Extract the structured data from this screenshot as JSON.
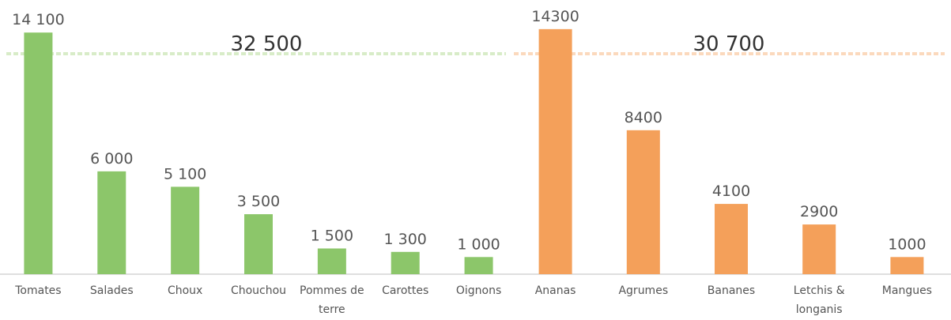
{
  "chart_data": [
    {
      "type": "bar",
      "annotation": "32 500",
      "categories": [
        "Tomates",
        "Salades",
        "Choux",
        "Chouchou",
        "Pommes de terre",
        "Carottes",
        "Oignons"
      ],
      "values": [
        14100,
        6000,
        5100,
        3500,
        1500,
        1300,
        1000
      ],
      "value_labels": [
        "14 100",
        "6 000",
        "5 100",
        "3 500",
        "1 500",
        "1 300",
        "1 000"
      ],
      "color": "#8cc66a",
      "ylim": [
        0,
        16000
      ]
    },
    {
      "type": "bar",
      "annotation": "30 700",
      "categories": [
        "Ananas",
        "Agrumes",
        "Bananes",
        "Letchis & longanis",
        "Mangues"
      ],
      "values": [
        14300,
        8400,
        4100,
        2900,
        1000
      ],
      "value_labels": [
        "14300",
        "8400",
        "4100",
        "2900",
        "1000"
      ],
      "color": "#f4a05a",
      "ylim": [
        0,
        16000
      ]
    }
  ]
}
